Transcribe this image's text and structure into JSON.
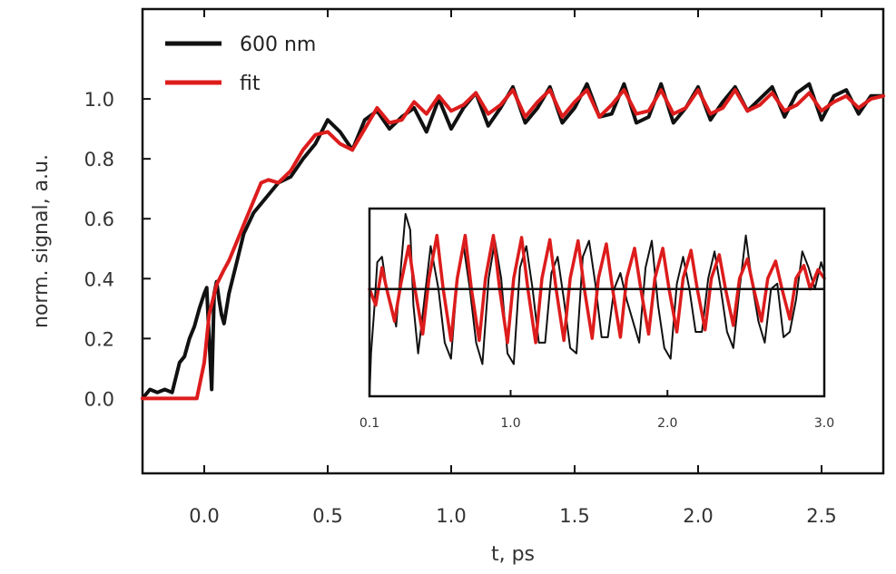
{
  "chart_data": [
    {
      "type": "line",
      "xlabel": "t, ps",
      "ylabel": "norm. signal, a.u.",
      "xlim": [
        -0.25,
        2.75
      ],
      "ylim": [
        -0.25,
        1.3
      ],
      "x_ticks": [
        {
          "value": 0.0,
          "label": "0.0"
        },
        {
          "value": 0.5,
          "label": "0.5"
        },
        {
          "value": 1.0,
          "label": "1.0"
        },
        {
          "value": 1.5,
          "label": "1.5"
        },
        {
          "value": 2.0,
          "label": "2.0"
        },
        {
          "value": 2.5,
          "label": "2.5"
        }
      ],
      "y_ticks": [
        {
          "value": 0.0,
          "label": "0.0"
        },
        {
          "value": 0.2,
          "label": "0.2"
        },
        {
          "value": 0.4,
          "label": "0.4"
        },
        {
          "value": 0.6,
          "label": "0.6"
        },
        {
          "value": 0.8,
          "label": "0.8"
        },
        {
          "value": 1.0,
          "label": "1.0"
        }
      ],
      "legend": {
        "placement": "top-left",
        "entries": [
          {
            "label": "600 nm",
            "color": "#111111"
          },
          {
            "label": "fit",
            "color": "#dd1c1c"
          }
        ]
      },
      "grid": false,
      "series": [
        {
          "name": "600 nm",
          "color": "#111111",
          "x": [
            -0.25,
            -0.22,
            -0.19,
            -0.16,
            -0.13,
            -0.1,
            -0.08,
            -0.06,
            -0.04,
            -0.02,
            0.0,
            0.01,
            0.02,
            0.03,
            0.04,
            0.05,
            0.06,
            0.07,
            0.08,
            0.1,
            0.13,
            0.16,
            0.2,
            0.25,
            0.3,
            0.35,
            0.4,
            0.45,
            0.5,
            0.55,
            0.6,
            0.65,
            0.7,
            0.75,
            0.8,
            0.85,
            0.9,
            0.95,
            1.0,
            1.05,
            1.1,
            1.15,
            1.2,
            1.25,
            1.3,
            1.35,
            1.4,
            1.45,
            1.5,
            1.55,
            1.6,
            1.65,
            1.7,
            1.75,
            1.8,
            1.85,
            1.9,
            1.95,
            2.0,
            2.05,
            2.1,
            2.15,
            2.2,
            2.25,
            2.3,
            2.35,
            2.4,
            2.45,
            2.5,
            2.55,
            2.6,
            2.65,
            2.7,
            2.75
          ],
          "y": [
            0.0,
            0.03,
            0.02,
            0.03,
            0.02,
            0.12,
            0.14,
            0.2,
            0.24,
            0.3,
            0.35,
            0.37,
            0.2,
            0.03,
            0.35,
            0.39,
            0.33,
            0.28,
            0.25,
            0.35,
            0.45,
            0.55,
            0.62,
            0.67,
            0.72,
            0.74,
            0.8,
            0.85,
            0.93,
            0.89,
            0.83,
            0.93,
            0.96,
            0.9,
            0.94,
            0.97,
            0.89,
            1.0,
            0.9,
            0.97,
            1.02,
            0.91,
            0.97,
            1.04,
            0.92,
            0.97,
            1.04,
            0.92,
            0.97,
            1.05,
            0.94,
            0.95,
            1.05,
            0.92,
            0.94,
            1.05,
            0.92,
            0.97,
            1.04,
            0.93,
            0.99,
            1.04,
            0.96,
            1.0,
            1.04,
            0.94,
            1.02,
            1.05,
            0.93,
            1.01,
            1.03,
            0.95,
            1.01,
            1.01
          ]
        },
        {
          "name": "fit",
          "color": "#dd1c1c",
          "x": [
            -0.25,
            -0.03,
            0.0,
            0.02,
            0.05,
            0.08,
            0.1,
            0.13,
            0.16,
            0.2,
            0.23,
            0.26,
            0.3,
            0.35,
            0.4,
            0.45,
            0.5,
            0.55,
            0.6,
            0.65,
            0.7,
            0.75,
            0.8,
            0.85,
            0.9,
            0.95,
            1.0,
            1.05,
            1.1,
            1.15,
            1.2,
            1.25,
            1.3,
            1.35,
            1.4,
            1.45,
            1.5,
            1.55,
            1.6,
            1.65,
            1.7,
            1.75,
            1.8,
            1.85,
            1.9,
            1.95,
            2.0,
            2.05,
            2.1,
            2.15,
            2.2,
            2.25,
            2.3,
            2.35,
            2.4,
            2.45,
            2.5,
            2.55,
            2.6,
            2.65,
            2.7,
            2.75
          ],
          "y": [
            0.0,
            0.0,
            0.12,
            0.28,
            0.38,
            0.43,
            0.46,
            0.52,
            0.58,
            0.66,
            0.72,
            0.73,
            0.72,
            0.76,
            0.83,
            0.88,
            0.89,
            0.85,
            0.83,
            0.9,
            0.97,
            0.92,
            0.93,
            0.99,
            0.95,
            1.01,
            0.96,
            0.98,
            1.02,
            0.95,
            0.98,
            1.03,
            0.94,
            0.99,
            1.03,
            0.94,
            0.99,
            1.03,
            0.94,
            0.98,
            1.03,
            0.95,
            0.96,
            1.03,
            0.95,
            0.97,
            1.03,
            0.95,
            0.97,
            1.03,
            0.96,
            0.98,
            1.02,
            0.96,
            0.98,
            1.02,
            0.96,
            0.99,
            1.01,
            0.97,
            1.0,
            1.01
          ]
        }
      ]
    },
    {
      "type": "line",
      "title": "",
      "xlim": [
        0.1,
        3.0
      ],
      "x_ticks": [
        {
          "value": 0.1,
          "label": "0.1"
        },
        {
          "value": 1.0,
          "label": "1.0"
        },
        {
          "value": 2.0,
          "label": "2.0"
        },
        {
          "value": 3.0,
          "label": "3.0"
        }
      ],
      "ylim": [
        -1.0,
        0.75
      ],
      "baseline": 0.0,
      "grid": false,
      "series": [
        {
          "color": "#111111",
          "x": [
            0.1,
            0.11,
            0.13,
            0.15,
            0.18,
            0.21,
            0.24,
            0.27,
            0.3,
            0.33,
            0.36,
            0.38,
            0.41,
            0.45,
            0.49,
            0.54,
            0.58,
            0.62,
            0.66,
            0.7,
            0.74,
            0.78,
            0.82,
            0.86,
            0.9,
            0.94,
            0.98,
            1.02,
            1.06,
            1.1,
            1.14,
            1.18,
            1.22,
            1.26,
            1.3,
            1.34,
            1.38,
            1.42,
            1.46,
            1.5,
            1.54,
            1.58,
            1.62,
            1.66,
            1.7,
            1.74,
            1.78,
            1.82,
            1.86,
            1.9,
            1.94,
            1.98,
            2.02,
            2.06,
            2.1,
            2.14,
            2.18,
            2.22,
            2.26,
            2.3,
            2.34,
            2.38,
            2.42,
            2.46,
            2.5,
            2.54,
            2.58,
            2.62,
            2.66,
            2.7,
            2.74,
            2.78,
            2.82,
            2.86,
            2.9,
            2.94,
            2.98,
            3.0
          ],
          "y": [
            -1.0,
            -0.6,
            -0.2,
            0.25,
            0.3,
            0.0,
            -0.15,
            -0.35,
            0.2,
            0.7,
            0.55,
            -0.15,
            -0.6,
            -0.1,
            0.4,
            0.0,
            -0.5,
            -0.65,
            0.1,
            0.4,
            0.0,
            -0.5,
            -0.7,
            0.1,
            0.45,
            0.1,
            -0.6,
            -0.7,
            0.2,
            0.4,
            0.0,
            -0.5,
            -0.5,
            0.15,
            0.3,
            -0.1,
            -0.55,
            -0.6,
            0.3,
            0.45,
            0.05,
            -0.45,
            -0.45,
            0.0,
            0.15,
            -0.1,
            -0.3,
            -0.5,
            0.2,
            0.45,
            -0.15,
            -0.55,
            -0.65,
            0.05,
            0.3,
            0.0,
            -0.4,
            -0.4,
            0.1,
            0.35,
            0.0,
            -0.4,
            -0.55,
            0.0,
            0.5,
            0.05,
            -0.3,
            -0.5,
            0.0,
            0.05,
            -0.45,
            -0.4,
            -0.1,
            0.35,
            0.2,
            0.0,
            0.25,
            0.15
          ]
        },
        {
          "color": "#dd1c1c",
          "x": [
            0.1,
            0.14,
            0.18,
            0.21,
            0.26,
            0.3,
            0.35,
            0.39,
            0.44,
            0.48,
            0.53,
            0.57,
            0.62,
            0.66,
            0.71,
            0.75,
            0.8,
            0.84,
            0.89,
            0.93,
            0.98,
            1.02,
            1.07,
            1.11,
            1.16,
            1.2,
            1.25,
            1.29,
            1.34,
            1.38,
            1.43,
            1.47,
            1.52,
            1.56,
            1.61,
            1.65,
            1.7,
            1.74,
            1.79,
            1.83,
            1.88,
            1.92,
            1.97,
            2.01,
            2.06,
            2.1,
            2.15,
            2.19,
            2.24,
            2.28,
            2.33,
            2.37,
            2.42,
            2.46,
            2.51,
            2.55,
            2.6,
            2.64,
            2.69,
            2.73,
            2.78,
            2.82,
            2.87,
            2.91,
            2.96,
            3.0
          ],
          "y": [
            0.0,
            -0.15,
            0.2,
            0.0,
            -0.3,
            0.05,
            0.4,
            0.0,
            -0.42,
            0.1,
            0.5,
            0.0,
            -0.48,
            0.1,
            0.5,
            0.0,
            -0.48,
            0.1,
            0.5,
            0.0,
            -0.5,
            0.1,
            0.48,
            0.0,
            -0.5,
            0.1,
            0.46,
            0.0,
            -0.48,
            0.1,
            0.45,
            0.0,
            -0.46,
            0.1,
            0.42,
            0.0,
            -0.45,
            0.1,
            0.38,
            0.0,
            -0.42,
            0.1,
            0.38,
            0.0,
            -0.4,
            0.1,
            0.36,
            0.0,
            -0.38,
            0.1,
            0.32,
            0.0,
            -0.34,
            0.1,
            0.28,
            0.0,
            -0.3,
            0.1,
            0.26,
            0.0,
            -0.28,
            0.1,
            0.22,
            0.0,
            0.18,
            0.1
          ]
        }
      ]
    }
  ]
}
